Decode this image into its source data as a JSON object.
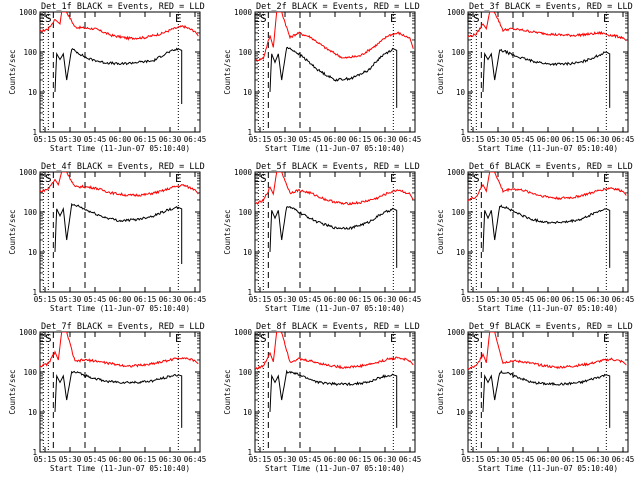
{
  "chart_data": [
    {
      "type": "line",
      "title": "Det_1f BLACK = Events, RED = LLD",
      "xlabel": "Start Time (11-Jun-07 05:10:40)",
      "ylabel": "Counts/sec",
      "y_scale": "log",
      "ylim": [
        1,
        1000
      ],
      "y_ticks": [
        "1",
        "10",
        "100",
        "1000"
      ],
      "x_ticks": [
        "05:15",
        "05:30",
        "05:45",
        "06:00",
        "06:15",
        "06:30",
        "06:45"
      ],
      "markers": [
        "E",
        "S",
        "E"
      ],
      "series": [
        {
          "color": "#ff0000",
          "x": [
            "05:12",
            "05:17",
            "05:21",
            "05:24",
            "05:25",
            "05:28",
            "05:33",
            "05:38",
            "05:45",
            "05:55",
            "06:05",
            "06:15",
            "06:25",
            "06:32",
            "06:38",
            "06:45",
            "06:47"
          ],
          "values": [
            320,
            380,
            650,
            500,
            1000,
            1000,
            420,
            400,
            380,
            260,
            220,
            230,
            290,
            380,
            440,
            330,
            250
          ]
        },
        {
          "color": "#000000",
          "x": [
            "05:21",
            "05:22",
            "05:24",
            "05:26",
            "05:28",
            "05:31",
            "05:35",
            "05:40",
            "05:50",
            "06:00",
            "06:10",
            "06:20",
            "06:28",
            "06:35",
            "06:37",
            "06:37"
          ],
          "values": [
            10,
            90,
            65,
            90,
            20,
            120,
            95,
            70,
            55,
            50,
            55,
            60,
            95,
            120,
            110,
            5
          ]
        }
      ]
    },
    {
      "type": "line",
      "title": "Det_2f BLACK = Events, RED = LLD",
      "xlabel": "Start Time (11-Jun-07 05:10:40)",
      "ylabel": "Counts/sec",
      "y_scale": "log",
      "ylim": [
        1,
        1000
      ],
      "y_ticks": [
        "1",
        "10",
        "100",
        "1000"
      ],
      "x_ticks": [
        "05:15",
        "05:30",
        "05:45",
        "06:00",
        "06:15",
        "06:30",
        "06:45"
      ],
      "markers": [
        "E",
        "S",
        "E"
      ],
      "series": [
        {
          "color": "#ff0000",
          "x": [
            "05:12",
            "05:17",
            "05:21",
            "05:23",
            "05:25",
            "05:28",
            "05:33",
            "05:38",
            "05:45",
            "05:55",
            "06:05",
            "06:15",
            "06:25",
            "06:32",
            "06:38",
            "06:45",
            "06:47"
          ],
          "values": [
            60,
            70,
            260,
            130,
            1000,
            1000,
            230,
            300,
            240,
            120,
            70,
            80,
            150,
            260,
            300,
            220,
            120
          ]
        },
        {
          "color": "#000000",
          "x": [
            "05:21",
            "05:22",
            "05:24",
            "05:26",
            "05:28",
            "05:31",
            "05:35",
            "05:40",
            "05:50",
            "06:00",
            "06:10",
            "06:20",
            "06:28",
            "06:35",
            "06:37",
            "06:37"
          ],
          "values": [
            10,
            90,
            55,
            90,
            20,
            130,
            110,
            80,
            35,
            20,
            22,
            35,
            80,
            120,
            110,
            4
          ]
        }
      ]
    },
    {
      "type": "line",
      "title": "Det_3f BLACK = Events, RED = LLD",
      "xlabel": "Start Time (11-Jun-07 05:10:40)",
      "ylabel": "Counts/sec",
      "y_scale": "log",
      "ylim": [
        1,
        1000
      ],
      "y_ticks": [
        "1",
        "10",
        "100",
        "1000"
      ],
      "x_ticks": [
        "05:15",
        "05:30",
        "05:45",
        "06:00",
        "06:15",
        "06:30",
        "06:45"
      ],
      "markers": [
        "E",
        "S",
        "E"
      ],
      "series": [
        {
          "color": "#ff0000",
          "x": [
            "05:12",
            "05:17",
            "05:21",
            "05:23",
            "05:25",
            "05:28",
            "05:33",
            "05:38",
            "05:45",
            "05:55",
            "06:05",
            "06:15",
            "06:25",
            "06:32",
            "06:38",
            "06:45",
            "06:47"
          ],
          "values": [
            240,
            280,
            500,
            380,
            1000,
            1000,
            350,
            380,
            350,
            300,
            270,
            260,
            280,
            300,
            260,
            230,
            190
          ]
        },
        {
          "color": "#000000",
          "x": [
            "05:21",
            "05:22",
            "05:24",
            "05:26",
            "05:28",
            "05:31",
            "05:35",
            "05:40",
            "05:50",
            "06:00",
            "06:10",
            "06:20",
            "06:28",
            "06:35",
            "06:37",
            "06:37"
          ],
          "values": [
            10,
            90,
            65,
            90,
            20,
            110,
            100,
            80,
            60,
            50,
            50,
            55,
            75,
            100,
            90,
            4
          ]
        }
      ]
    },
    {
      "type": "line",
      "title": "Det_4f BLACK = Events, RED = LLD",
      "xlabel": "Start Time (11-Jun-07 05:10:40)",
      "ylabel": "Counts/sec",
      "y_scale": "log",
      "ylim": [
        1,
        1000
      ],
      "y_ticks": [
        "1",
        "10",
        "100",
        "1000"
      ],
      "x_ticks": [
        "05:15",
        "05:30",
        "05:45",
        "06:00",
        "06:15",
        "06:30",
        "06:45"
      ],
      "markers": [
        "E",
        "S",
        "E"
      ],
      "series": [
        {
          "color": "#ff0000",
          "x": [
            "05:12",
            "05:17",
            "05:21",
            "05:23",
            "05:25",
            "05:28",
            "05:33",
            "05:38",
            "05:45",
            "05:55",
            "06:05",
            "06:15",
            "06:25",
            "06:32",
            "06:38",
            "06:45",
            "06:47"
          ],
          "values": [
            320,
            380,
            650,
            480,
            1000,
            1000,
            420,
            430,
            400,
            300,
            260,
            270,
            330,
            420,
            470,
            360,
            280
          ]
        },
        {
          "color": "#000000",
          "x": [
            "05:21",
            "05:22",
            "05:24",
            "05:26",
            "05:28",
            "05:31",
            "05:35",
            "05:40",
            "05:50",
            "06:00",
            "06:10",
            "06:20",
            "06:28",
            "06:35",
            "06:37",
            "06:37"
          ],
          "values": [
            10,
            120,
            80,
            120,
            20,
            150,
            140,
            110,
            75,
            60,
            65,
            80,
            110,
            130,
            120,
            5
          ]
        }
      ]
    },
    {
      "type": "line",
      "title": "Det_5f BLACK = Events, RED = LLD",
      "xlabel": "Start Time (11-Jun-07 05:10:40)",
      "ylabel": "Counts/sec",
      "y_scale": "log",
      "ylim": [
        1,
        1000
      ],
      "y_ticks": [
        "1",
        "10",
        "100",
        "1000"
      ],
      "x_ticks": [
        "05:15",
        "05:30",
        "05:45",
        "06:00",
        "06:15",
        "06:30",
        "06:45"
      ],
      "markers": [
        "E",
        "S",
        "E"
      ],
      "series": [
        {
          "color": "#ff0000",
          "x": [
            "05:12",
            "05:17",
            "05:21",
            "05:23",
            "05:25",
            "05:28",
            "05:33",
            "05:38",
            "05:45",
            "05:55",
            "06:05",
            "06:15",
            "06:25",
            "06:32",
            "06:38",
            "06:45",
            "06:47"
          ],
          "values": [
            160,
            190,
            420,
            280,
            1000,
            1000,
            300,
            350,
            300,
            200,
            160,
            170,
            220,
            300,
            360,
            280,
            200
          ]
        },
        {
          "color": "#000000",
          "x": [
            "05:21",
            "05:22",
            "05:24",
            "05:26",
            "05:28",
            "05:31",
            "05:35",
            "05:40",
            "05:50",
            "06:00",
            "06:10",
            "06:20",
            "06:28",
            "06:35",
            "06:37",
            "06:37"
          ],
          "values": [
            10,
            110,
            70,
            110,
            20,
            140,
            120,
            90,
            55,
            40,
            40,
            55,
            90,
            120,
            110,
            4
          ]
        }
      ]
    },
    {
      "type": "line",
      "title": "Det_6f BLACK = Events, RED = LLD",
      "xlabel": "Start Time (11-Jun-07 05:10:40)",
      "ylabel": "Counts/sec",
      "y_scale": "log",
      "ylim": [
        1,
        1000
      ],
      "y_ticks": [
        "1",
        "10",
        "100",
        "1000"
      ],
      "x_ticks": [
        "05:15",
        "05:30",
        "05:45",
        "06:00",
        "06:15",
        "06:30",
        "06:45"
      ],
      "markers": [
        "E",
        "S",
        "E"
      ],
      "series": [
        {
          "color": "#ff0000",
          "x": [
            "05:12",
            "05:17",
            "05:21",
            "05:23",
            "05:25",
            "05:28",
            "05:33",
            "05:38",
            "05:45",
            "05:55",
            "06:05",
            "06:15",
            "06:25",
            "06:32",
            "06:38",
            "06:45",
            "06:47"
          ],
          "values": [
            200,
            240,
            480,
            330,
            1000,
            1000,
            330,
            380,
            350,
            260,
            220,
            230,
            290,
            360,
            400,
            330,
            260
          ]
        },
        {
          "color": "#000000",
          "x": [
            "05:21",
            "05:22",
            "05:24",
            "05:26",
            "05:28",
            "05:31",
            "05:35",
            "05:40",
            "05:50",
            "06:00",
            "06:10",
            "06:20",
            "06:28",
            "06:35",
            "06:37",
            "06:37"
          ],
          "values": [
            10,
            110,
            70,
            110,
            20,
            140,
            130,
            100,
            65,
            55,
            55,
            65,
            95,
            120,
            110,
            4
          ]
        }
      ]
    },
    {
      "type": "line",
      "title": "Det_7f BLACK = Events, RED = LLD",
      "xlabel": "Start Time (11-Jun-07 05:10:40)",
      "ylabel": "Counts/sec",
      "y_scale": "log",
      "ylim": [
        1,
        1000
      ],
      "y_ticks": [
        "1",
        "10",
        "100",
        "1000"
      ],
      "x_ticks": [
        "05:15",
        "05:30",
        "05:45",
        "06:00",
        "06:15",
        "06:30",
        "06:45"
      ],
      "markers": [
        "E",
        "S",
        "E"
      ],
      "series": [
        {
          "color": "#ff0000",
          "x": [
            "05:12",
            "05:17",
            "05:21",
            "05:23",
            "05:25",
            "05:28",
            "05:33",
            "05:38",
            "05:45",
            "05:55",
            "06:05",
            "06:15",
            "06:25",
            "06:32",
            "06:38",
            "06:45",
            "06:47"
          ],
          "values": [
            140,
            160,
            320,
            200,
            1000,
            1000,
            180,
            200,
            190,
            160,
            140,
            150,
            180,
            210,
            230,
            190,
            160
          ]
        },
        {
          "color": "#000000",
          "x": [
            "05:21",
            "05:22",
            "05:24",
            "05:26",
            "05:28",
            "05:31",
            "05:35",
            "05:40",
            "05:50",
            "06:00",
            "06:10",
            "06:20",
            "06:28",
            "06:35",
            "06:37",
            "06:37"
          ],
          "values": [
            10,
            80,
            55,
            80,
            20,
            100,
            95,
            80,
            60,
            55,
            55,
            60,
            75,
            85,
            80,
            4
          ]
        }
      ]
    },
    {
      "type": "line",
      "title": "Det_8f BLACK = Events, RED = LLD",
      "xlabel": "Start Time (11-Jun-07 05:10:40)",
      "ylabel": "Counts/sec",
      "y_scale": "log",
      "ylim": [
        1,
        1000
      ],
      "y_ticks": [
        "1",
        "10",
        "100",
        "1000"
      ],
      "x_ticks": [
        "05:15",
        "05:30",
        "05:45",
        "06:00",
        "06:15",
        "06:30",
        "06:45"
      ],
      "markers": [
        "E",
        "S",
        "E"
      ],
      "series": [
        {
          "color": "#ff0000",
          "x": [
            "05:12",
            "05:17",
            "05:21",
            "05:23",
            "05:25",
            "05:28",
            "05:33",
            "05:38",
            "05:45",
            "05:55",
            "06:05",
            "06:15",
            "06:25",
            "06:32",
            "06:38",
            "06:45",
            "06:47"
          ],
          "values": [
            120,
            140,
            300,
            180,
            1000,
            1000,
            180,
            210,
            190,
            150,
            130,
            140,
            170,
            210,
            230,
            190,
            150
          ]
        },
        {
          "color": "#000000",
          "x": [
            "05:21",
            "05:22",
            "05:24",
            "05:26",
            "05:28",
            "05:31",
            "05:35",
            "05:40",
            "05:50",
            "06:00",
            "06:10",
            "06:20",
            "06:28",
            "06:35",
            "06:37",
            "06:37"
          ],
          "values": [
            10,
            80,
            55,
            80,
            20,
            100,
            95,
            80,
            55,
            50,
            50,
            55,
            75,
            85,
            80,
            4
          ]
        }
      ]
    },
    {
      "type": "line",
      "title": "Det_9f BLACK = Events, RED = LLD",
      "xlabel": "Start Time (11-Jun-07 05:10:40)",
      "ylabel": "Counts/sec",
      "y_scale": "log",
      "ylim": [
        1,
        1000
      ],
      "y_ticks": [
        "1",
        "10",
        "100",
        "1000"
      ],
      "x_ticks": [
        "05:15",
        "05:30",
        "05:45",
        "06:00",
        "06:15",
        "06:30",
        "06:45"
      ],
      "markers": [
        "E",
        "S",
        "E"
      ],
      "series": [
        {
          "color": "#ff0000",
          "x": [
            "05:12",
            "05:17",
            "05:21",
            "05:23",
            "05:25",
            "05:28",
            "05:33",
            "05:38",
            "05:45",
            "05:55",
            "06:05",
            "06:15",
            "06:25",
            "06:32",
            "06:38",
            "06:45",
            "06:47"
          ],
          "values": [
            120,
            140,
            280,
            170,
            1000,
            1000,
            170,
            190,
            180,
            150,
            130,
            140,
            160,
            190,
            210,
            180,
            150
          ]
        },
        {
          "color": "#000000",
          "x": [
            "05:21",
            "05:22",
            "05:24",
            "05:26",
            "05:28",
            "05:31",
            "05:35",
            "05:40",
            "05:50",
            "06:00",
            "06:10",
            "06:20",
            "06:28",
            "06:35",
            "06:37",
            "06:37"
          ],
          "values": [
            10,
            80,
            55,
            80,
            20,
            100,
            95,
            80,
            55,
            50,
            50,
            55,
            70,
            85,
            80,
            4
          ]
        }
      ]
    }
  ]
}
